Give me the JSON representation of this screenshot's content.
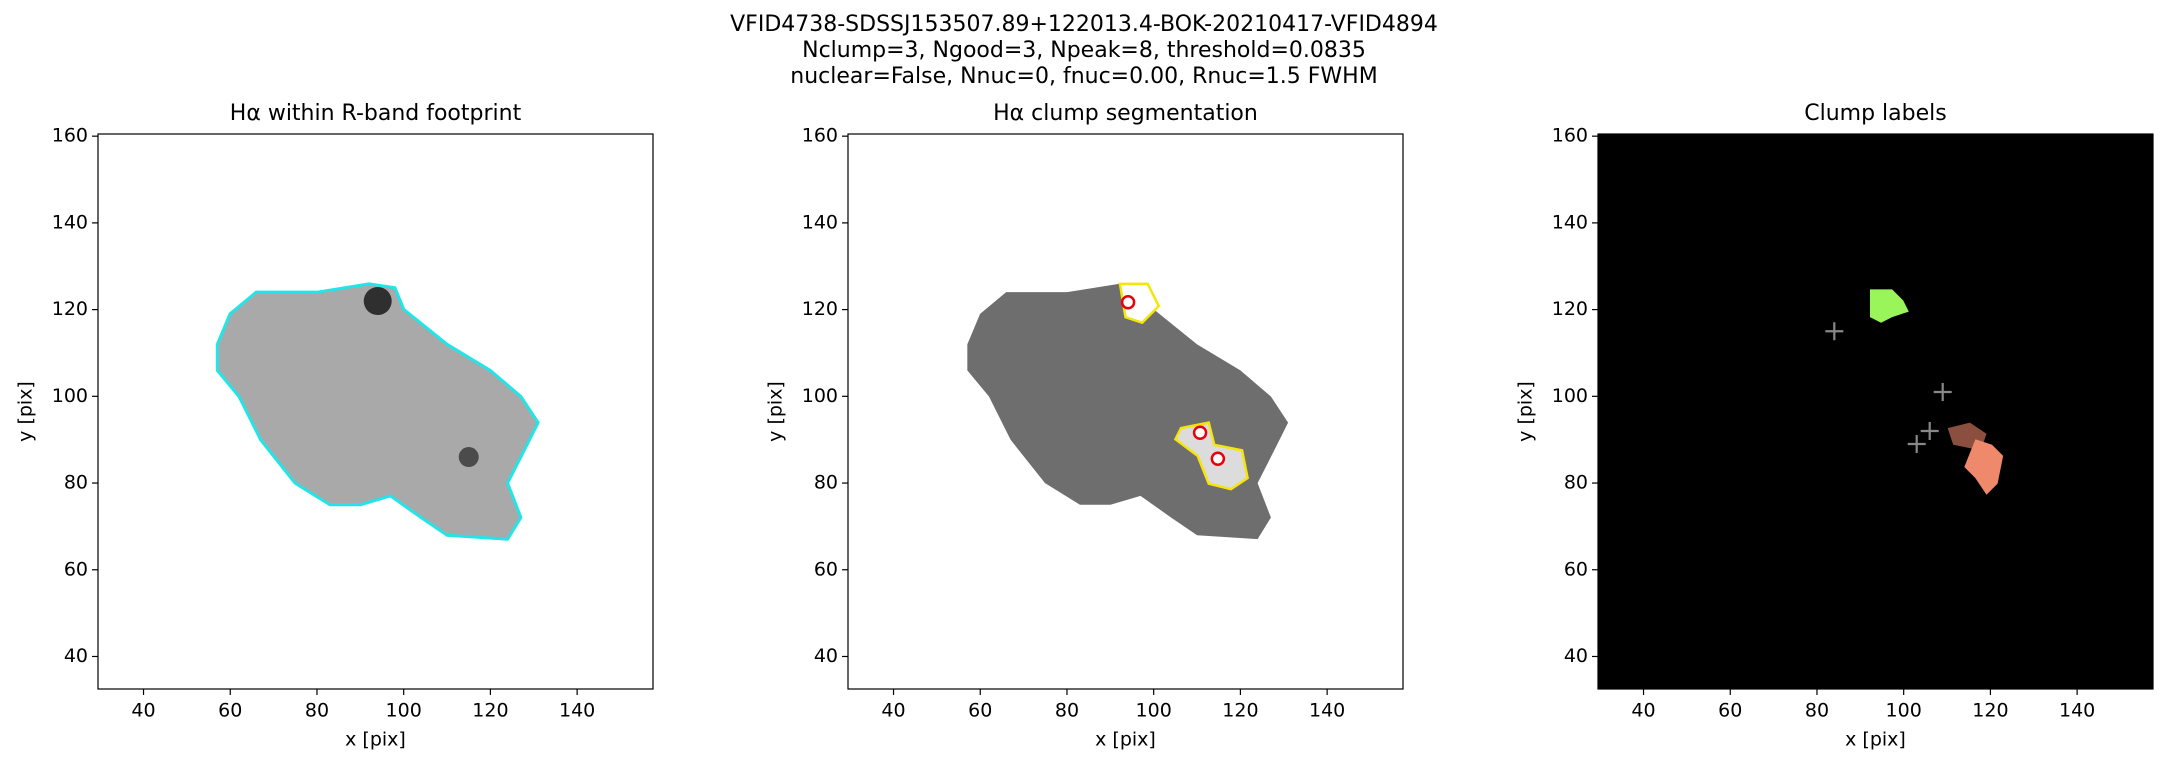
{
  "figure": {
    "title_lines": [
      "VFID4738-SDSSJ153507.89+122013.4-BOK-20210417-VFID4894",
      "Nclump=3, Ngood=3, Npeak=8, threshold=0.0835",
      "nuclear=False, Nnuc=0, fnuc=0.00, Rnuc=1.5 FWHM"
    ]
  },
  "chart_data": [
    {
      "type": "image",
      "style": "footprint",
      "title": "Hα within R-band footprint",
      "xlabel": "x [pix]",
      "ylabel": "y [pix]",
      "xlim": [
        29.5,
        157.5
      ],
      "ylim": [
        32.5,
        160.5
      ],
      "xticks": [
        40,
        60,
        80,
        100,
        120,
        140
      ],
      "yticks": [
        40,
        60,
        80,
        100,
        120,
        140,
        160
      ]
    },
    {
      "type": "image",
      "style": "segmentation",
      "title": "Hα clump segmentation",
      "xlabel": "x [pix]",
      "ylabel": "y [pix]",
      "xlim": [
        29.5,
        157.5
      ],
      "ylim": [
        32.5,
        160.5
      ],
      "xticks": [
        40,
        60,
        80,
        100,
        120,
        140
      ],
      "yticks": [
        40,
        60,
        80,
        100,
        120,
        140,
        160
      ],
      "points": {
        "x": [
          94.1,
          110.7,
          114.8
        ],
        "y": [
          121.7,
          91.6,
          85.6
        ],
        "color": "#e8000b"
      }
    },
    {
      "type": "image",
      "style": "labels",
      "title": "Clump labels",
      "xlabel": "x [pix]",
      "ylabel": "y [pix]",
      "xlim": [
        29.5,
        157.5
      ],
      "ylim": [
        32.5,
        160.5
      ],
      "xticks": [
        40,
        60,
        80,
        100,
        120,
        140
      ],
      "yticks": [
        40,
        60,
        80,
        100,
        120,
        140,
        160
      ],
      "points": {
        "x": [
          84,
          109,
          103,
          106
        ],
        "y": [
          115,
          101,
          89,
          92
        ],
        "color": "#888888"
      }
    }
  ]
}
